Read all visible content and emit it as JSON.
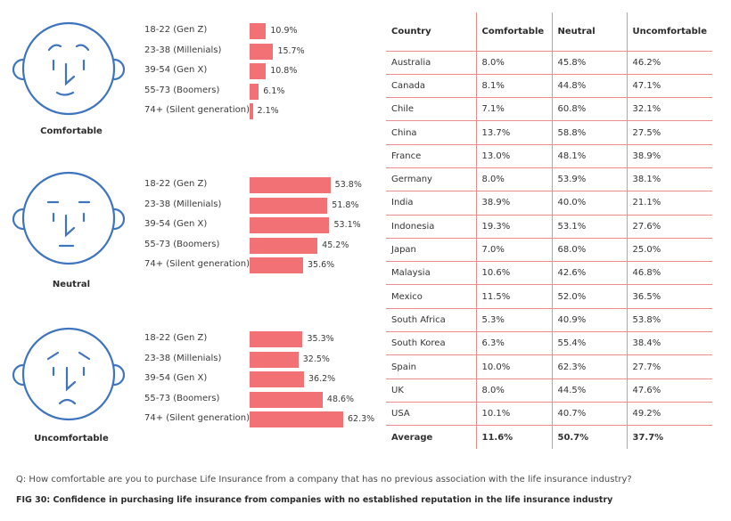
{
  "chart_data": [
    {
      "type": "bar",
      "orientation": "horizontal",
      "title": "Comfortable",
      "categories": [
        "18-22 (Gen Z)",
        "23-38 (Millenials)",
        "39-54 (Gen X)",
        "55-73 (Boomers)",
        "74+ (Silent generation)"
      ],
      "values": [
        10.9,
        15.7,
        10.8,
        6.1,
        2.1
      ],
      "value_labels": [
        "10.9%",
        "15.7%",
        "10.8%",
        "6.1%",
        "2.1%"
      ],
      "color": "#f27174"
    },
    {
      "type": "bar",
      "orientation": "horizontal",
      "title": "Neutral",
      "categories": [
        "18-22 (Gen Z)",
        "23-38 (Millenials)",
        "39-54 (Gen X)",
        "55-73 (Boomers)",
        "74+ (Silent generation)"
      ],
      "values": [
        53.8,
        51.8,
        53.1,
        45.2,
        35.6
      ],
      "value_labels": [
        "53.8%",
        "51.8%",
        "53.1%",
        "45.2%",
        "35.6%"
      ],
      "color": "#f27174"
    },
    {
      "type": "bar",
      "orientation": "horizontal",
      "title": "Uncomfortable",
      "categories": [
        "18-22 (Gen Z)",
        "23-38 (Millenials)",
        "39-54 (Gen X)",
        "55-73 (Boomers)",
        "74+ (Silent generation)"
      ],
      "values": [
        35.3,
        32.5,
        36.2,
        48.6,
        62.3
      ],
      "value_labels": [
        "35.3%",
        "32.5%",
        "36.2%",
        "48.6%",
        "62.3%"
      ],
      "color": "#f27174"
    },
    {
      "type": "table",
      "columns": [
        "Country",
        "Comfortable",
        "Neutral",
        "Uncomfortable"
      ],
      "rows": [
        [
          "Australia",
          "8.0%",
          "45.8%",
          "46.2%"
        ],
        [
          "Canada",
          "8.1%",
          "44.8%",
          "47.1%"
        ],
        [
          "Chile",
          "7.1%",
          "60.8%",
          "32.1%"
        ],
        [
          "China",
          "13.7%",
          "58.8%",
          "27.5%"
        ],
        [
          "France",
          "13.0%",
          "48.1%",
          "38.9%"
        ],
        [
          "Germany",
          "8.0%",
          "53.9%",
          "38.1%"
        ],
        [
          "India",
          "38.9%",
          "40.0%",
          "21.1%"
        ],
        [
          "Indonesia",
          "19.3%",
          "53.1%",
          "27.6%"
        ],
        [
          "Japan",
          "7.0%",
          "68.0%",
          "25.0%"
        ],
        [
          "Malaysia",
          "10.6%",
          "42.6%",
          "46.8%"
        ],
        [
          "Mexico",
          "11.5%",
          "52.0%",
          "36.5%"
        ],
        [
          "South Africa",
          "5.3%",
          "40.9%",
          "53.8%"
        ],
        [
          "South Korea",
          "6.3%",
          "55.4%",
          "38.4%"
        ],
        [
          "Spain",
          "10.0%",
          "62.3%",
          "27.7%"
        ],
        [
          "UK",
          "8.0%",
          "44.5%",
          "47.6%"
        ],
        [
          "USA",
          "10.1%",
          "40.7%",
          "49.2%"
        ]
      ],
      "average": [
        "Average",
        "11.6%",
        "50.7%",
        "37.7%"
      ]
    }
  ],
  "faces": [
    {
      "expression": "comfortable",
      "icon": "smiling-face-icon"
    },
    {
      "expression": "neutral",
      "icon": "neutral-face-icon"
    },
    {
      "expression": "uncomfortable",
      "icon": "frowning-face-icon"
    }
  ],
  "colors": {
    "bar": "#f27174",
    "face_stroke": "#3f74bf",
    "table_line": "#f08a8c"
  },
  "footer": {
    "question": "Q: How comfortable are you to purchase Life Insurance from a company that has no previous association with the life insurance industry?",
    "caption": "FIG 30: Confidence in purchasing life insurance from companies with no established reputation in the life insurance industry"
  }
}
